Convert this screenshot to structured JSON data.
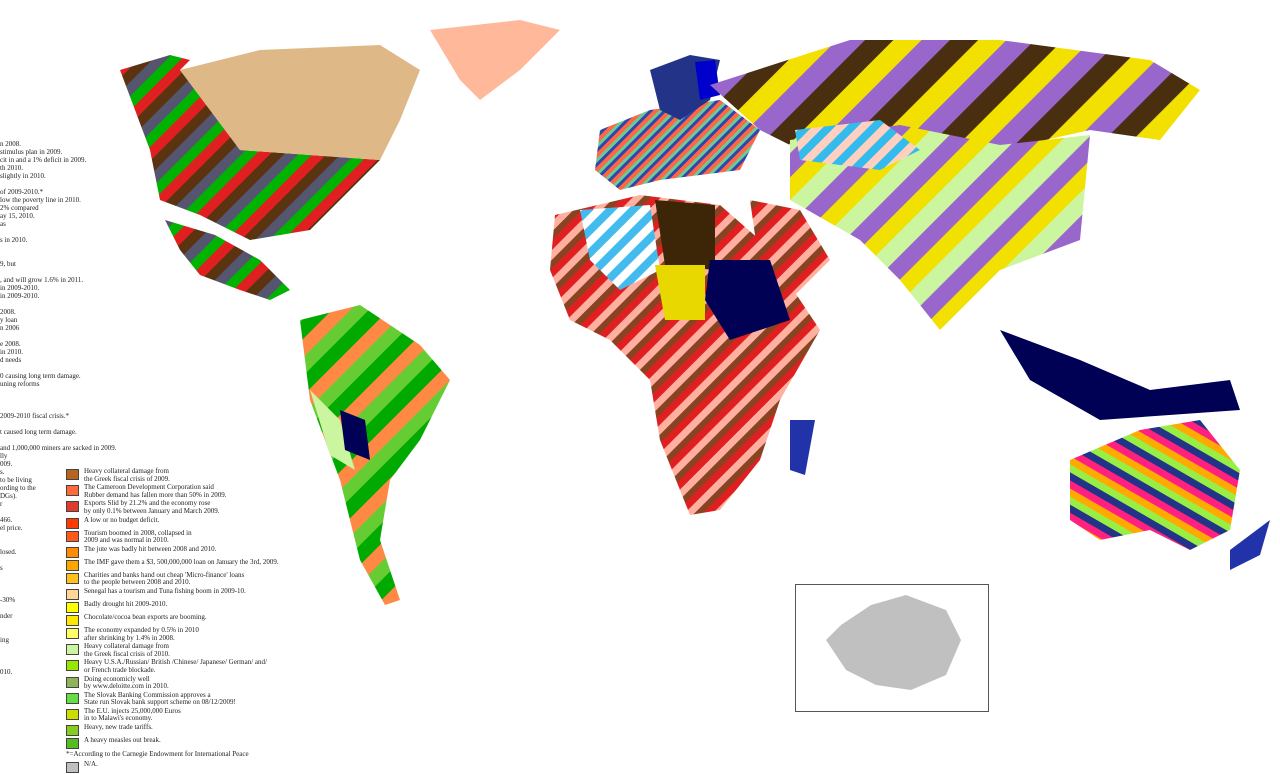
{
  "left_text_fragments": [
    "n 2008.",
    "stimulus plan in 2009.",
    "cit in and a 1% deficit in 2009.",
    "th 2010.",
    "slightly in 2010.",
    "",
    "of 2009-2010.*",
    "low the poverty line in 2010.",
    "2%  compared",
    "ay 15, 2010.",
    "as",
    "",
    "s in 2010.",
    "",
    "",
    "9, but",
    "",
    ", and will grow 1.6% in 2011.",
    "in 2009-2010.",
    "in 2009-2010.",
    "",
    " 2008.",
    "y loan",
    "n 2006",
    "",
    "e 2008.",
    " in 2010.",
    "d needs",
    "",
    "0 causing long term damage.",
    "uning reforms",
    "",
    "",
    "",
    "2009-2010 fiscal crisis.*",
    "",
    "t caused long term damage.",
    "",
    "and 1,000,000 miners are sacked in 2009.",
    "lly",
    "009.",
    "s.",
    " to be living",
    "ording to the",
    "DGs).",
    "r",
    "",
    "466.",
    "el price.",
    "",
    "",
    "losed.",
    "",
    "s",
    "",
    "",
    "",
    "-30%",
    "",
    "nder",
    "",
    "",
    "ing",
    "",
    "",
    "",
    "010."
  ],
  "legend": [
    {
      "color": "#b5651d",
      "text": [
        "Heavy collateral damage from",
        "the Greek fiscal crisis of 2009."
      ]
    },
    {
      "color": "#ff6a3d",
      "text": [
        "The Cameroon Development Corporation said",
        "Rubber  demand has fallen more than 50% in 2009."
      ]
    },
    {
      "color": "#e03c2c",
      "text": [
        "Exports Slid by 21.2%  and the economy rose",
        "by only 0.1% between January and March 2009."
      ]
    },
    {
      "color": "#ff3a00",
      "text": [
        "A low or no budget deficit."
      ]
    },
    {
      "color": "#ff5a1a",
      "text": [
        "Tourism boomed in 2008, collapsed in",
        "2009 and was normal in 2010."
      ]
    },
    {
      "color": "#ff8c00",
      "text": [
        "The jute was badly hit between 2008 and 2010."
      ]
    },
    {
      "color": "#ffa500",
      "text": [
        "The IMF gave them a $3, 500,000,000 loan  on January the 3rd, 2009."
      ]
    },
    {
      "color": "#ffc020",
      "text": [
        "Charities and banks hand out cheap 'Micro-finance' loans",
        "to the people between 2008 and 2010."
      ]
    },
    {
      "color": "#ffd59a",
      "text": [
        "Senegal has a tourism and Tuna fishing boom in 2009-10."
      ]
    },
    {
      "color": "#ffff00",
      "text": [
        "Badly drought hit 2009-2010."
      ]
    },
    {
      "color": "#ffe800",
      "text": [
        "Chocolate/cocoa bean exports are booming."
      ]
    },
    {
      "color": "#ffff66",
      "text": [
        "The economy expanded by 0.5% in 2010",
        "after shrinking by 1.4% in 2008."
      ]
    },
    {
      "color": "#ccf5a0",
      "text": [
        "Heavy collateral damage from",
        "the Greek fiscal crisis of 2010."
      ]
    },
    {
      "color": "#99e600",
      "text": [
        "Heavy U.S.A./Russian/ British /Chinese/ Japanese/ German/ and/",
        "or French trade blockade."
      ]
    },
    {
      "color": "#8fb35a",
      "text": [
        "Doing economicly  well",
        "by www.deloitte.com in 2010."
      ]
    },
    {
      "color": "#66dd44",
      "text": [
        "The Slovak Banking Commission approves a",
        "State run Slovak bank support scheme on 08/12/2009!"
      ]
    },
    {
      "color": "#ccdd00",
      "text": [
        "The E.U. injects 25,000,000 Euros",
        "in to Malawi's economy."
      ]
    },
    {
      "color": "#88cc22",
      "text": [
        "Heavy, new trade tariffs."
      ]
    },
    {
      "color": "#55bb22",
      "text": [
        "A  heavy measles out break."
      ]
    }
  ],
  "footnote": "*=According to the Carnegie Endowment for International Peace",
  "na": {
    "color": "#c0c0c0",
    "text": "N/A."
  }
}
